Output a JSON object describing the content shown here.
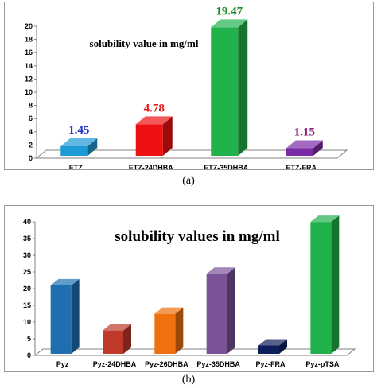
{
  "chart_data": [
    {
      "type": "bar",
      "title": "solubility value in mg/ml",
      "categories": [
        "ETZ",
        "ETZ-24DHBA",
        "ETZ-35DHBA",
        "ETZ-FRA"
      ],
      "values": [
        1.45,
        4.78,
        19.47,
        1.15
      ],
      "data_labels": [
        "1.45",
        "4.78",
        "19.47",
        "1.15"
      ],
      "colors": [
        "#1e9ad6",
        "#ee1111",
        "#22b24c",
        "#7b2aa6"
      ],
      "label_colors": [
        "#1f2fcc",
        "#e11b1b",
        "#1e8a28",
        "#8b1a7a"
      ],
      "ylim": [
        0,
        20
      ],
      "yticks": [
        "0",
        "2",
        "4",
        "6",
        "8",
        "10",
        "12",
        "14",
        "16",
        "18",
        "20"
      ],
      "grid": false,
      "style": "3d"
    },
    {
      "type": "bar",
      "title": "solubility values in mg/ml",
      "categories": [
        "Pyz",
        "Pyz-24DHBA",
        "Pyz-26DHBA",
        "Pyz-35DHBA",
        "Pyz-FRA",
        "Pyz-pTSA"
      ],
      "values": [
        20.5,
        7.0,
        12.0,
        24.0,
        2.5,
        39.5
      ],
      "colors": [
        "#1f6fb0",
        "#c0392b",
        "#f07010",
        "#7a5296",
        "#0d1f5a",
        "#22b24c"
      ],
      "ylim": [
        0,
        40
      ],
      "yticks": [
        "0",
        "5",
        "10",
        "15",
        "20",
        "25",
        "30",
        "35",
        "40"
      ],
      "grid": false,
      "style": "3d"
    }
  ],
  "captions": {
    "a": "(a)",
    "b": "(b)"
  }
}
